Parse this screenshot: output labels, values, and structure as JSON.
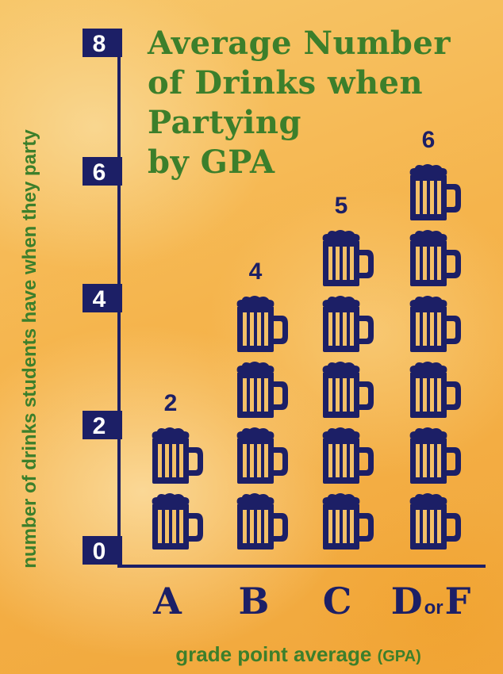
{
  "chart_data": {
    "type": "bar",
    "title_lines": [
      "Average Number",
      "of Drinks when",
      "Partying",
      "by GPA"
    ],
    "ylabel": "number of drinks students have when they party",
    "xlabel": "grade point average",
    "xlabel_suffix": "(GPA)",
    "ylim": [
      0,
      8
    ],
    "yticks": [
      "0",
      "2",
      "4",
      "6",
      "8"
    ],
    "categories": [
      {
        "main": "A",
        "connector": "",
        "alt": ""
      },
      {
        "main": "B",
        "connector": "",
        "alt": ""
      },
      {
        "main": "C",
        "connector": "",
        "alt": ""
      },
      {
        "main": "D",
        "connector": "or",
        "alt": "F"
      }
    ],
    "values": [
      2,
      4,
      5,
      6
    ],
    "data_labels": [
      "2",
      "4",
      "5",
      "6"
    ],
    "grid": false,
    "legend": "none",
    "mark": "beer-mug-icon"
  },
  "colors": {
    "axis": "#1c1f66",
    "mug": "#1c1f66",
    "text_green": "#3c7f2b",
    "tick_text": "#ffffff",
    "background": "#f6b64a"
  }
}
